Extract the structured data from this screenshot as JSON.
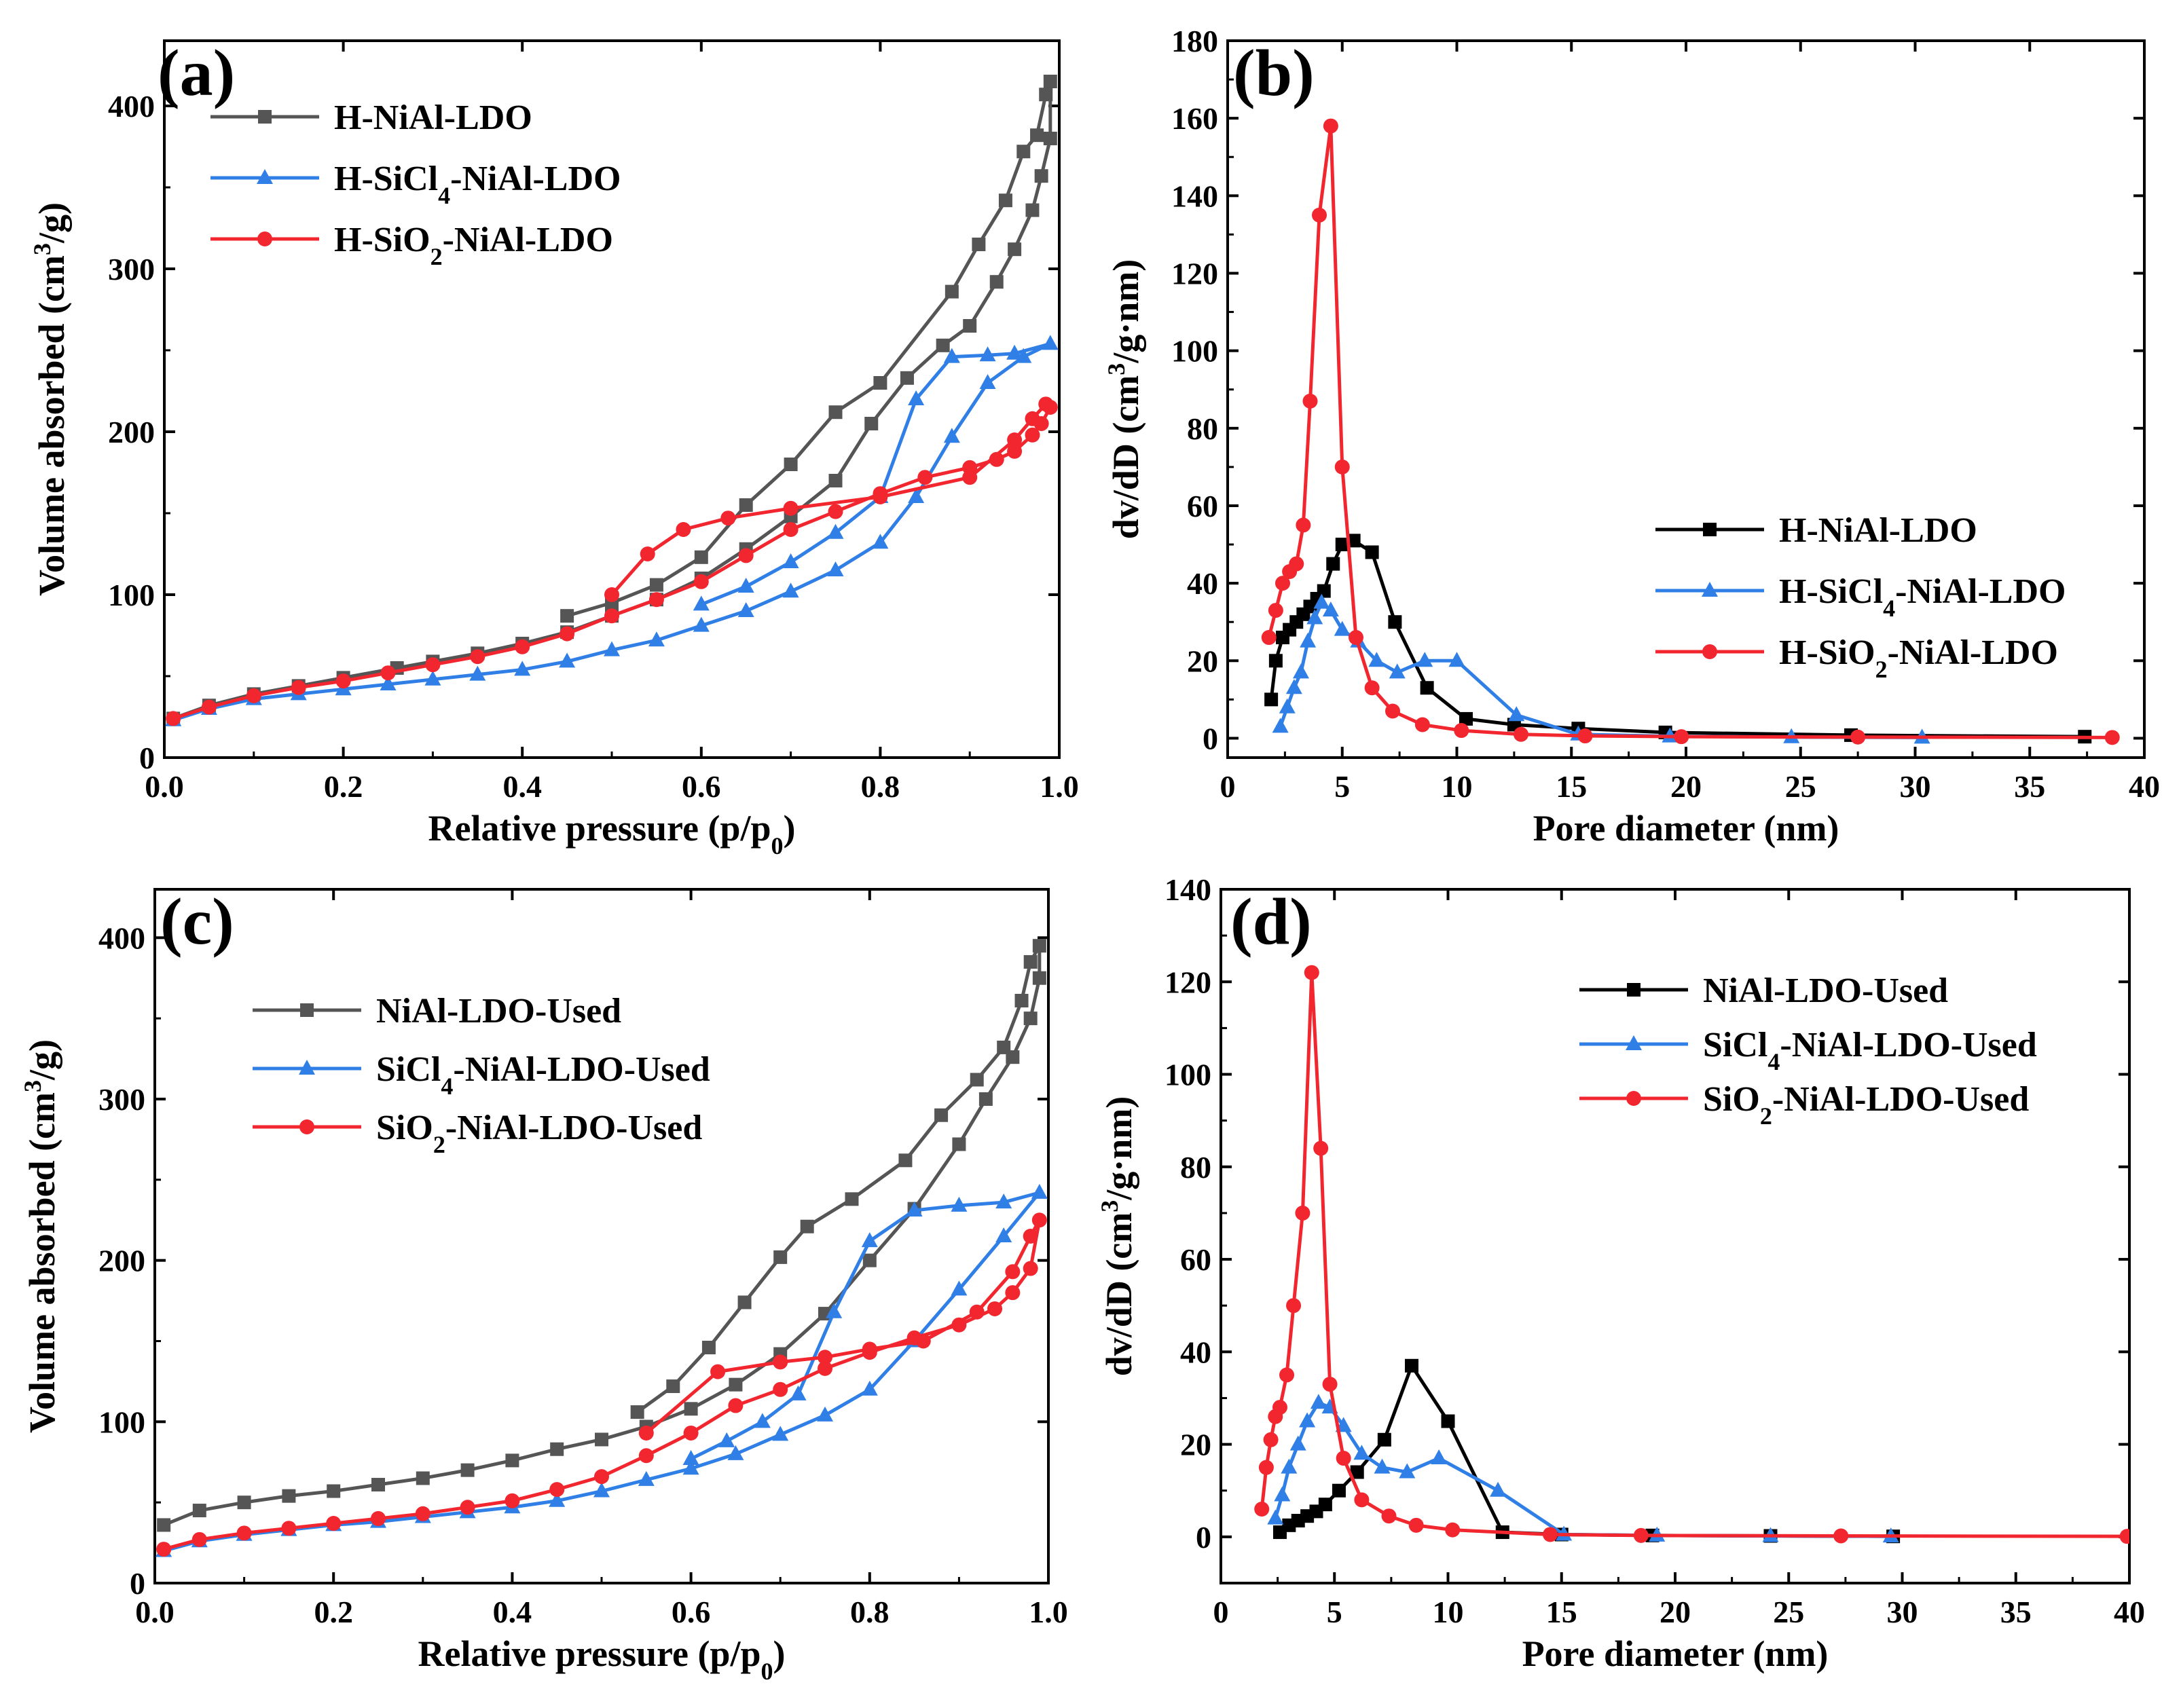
{
  "colors": {
    "black": "#000000",
    "gray": "#555555",
    "blue": "#2f7fe6",
    "red": "#f2262e"
  },
  "chart_data": [
    {
      "id": "a",
      "type": "line",
      "panel_label": "(a)",
      "xlabel": "Relative pressure (p/p0)",
      "ylabel": "Volume absorbed (cm3/g)",
      "xlim": [
        0,
        1.0
      ],
      "ylim": [
        0,
        440
      ],
      "xticks": [
        "0.0",
        "0.2",
        "0.4",
        "0.6",
        "0.8",
        "1.0"
      ],
      "yticks": [
        "0",
        "100",
        "200",
        "300",
        "400"
      ],
      "legend_position": "top-left",
      "series": [
        {
          "name": "H-NiAl-LDO",
          "color": "#555555",
          "marker": "square",
          "x": [
            0.01,
            0.05,
            0.1,
            0.15,
            0.2,
            0.26,
            0.3,
            0.35,
            0.4,
            0.45,
            0.5,
            0.55,
            0.6,
            0.65,
            0.7,
            0.75,
            0.79,
            0.83,
            0.87,
            0.9,
            0.93,
            0.95,
            0.97,
            0.98,
            0.99,
            0.99,
            0.985,
            0.975,
            0.96,
            0.94,
            0.91,
            0.88,
            0.8,
            0.75,
            0.7,
            0.65,
            0.6,
            0.55,
            0.5,
            0.45
          ],
          "y": [
            24,
            32,
            39,
            44,
            49,
            55,
            59,
            64,
            70,
            77,
            87,
            97,
            110,
            128,
            148,
            170,
            205,
            233,
            253,
            265,
            292,
            312,
            336,
            357,
            380,
            415,
            407,
            382,
            372,
            342,
            315,
            286,
            230,
            212,
            180,
            155,
            123,
            106,
            95,
            87
          ]
        },
        {
          "name": "H-SiCl4-NiAl-LDO",
          "color": "#2f7fe6",
          "marker": "triangle",
          "x": [
            0.01,
            0.05,
            0.1,
            0.15,
            0.2,
            0.25,
            0.3,
            0.35,
            0.4,
            0.45,
            0.5,
            0.55,
            0.6,
            0.65,
            0.7,
            0.75,
            0.8,
            0.84,
            0.88,
            0.92,
            0.96,
            0.99,
            0.95,
            0.92,
            0.88,
            0.84,
            0.8,
            0.75,
            0.7,
            0.65,
            0.6
          ],
          "y": [
            23,
            30,
            36,
            39,
            42,
            45,
            48,
            51,
            54,
            59,
            66,
            72,
            81,
            90,
            102,
            115,
            132,
            160,
            197,
            230,
            246,
            254,
            248,
            247,
            246,
            220,
            160,
            138,
            120,
            105,
            94
          ]
        },
        {
          "name": "H-SiO2-NiAl-LDO",
          "color": "#f2262e",
          "marker": "circle",
          "x": [
            0.01,
            0.05,
            0.1,
            0.15,
            0.2,
            0.25,
            0.3,
            0.35,
            0.4,
            0.45,
            0.5,
            0.55,
            0.6,
            0.65,
            0.7,
            0.75,
            0.8,
            0.85,
            0.9,
            0.93,
            0.95,
            0.97,
            0.98,
            0.99,
            0.985,
            0.97,
            0.95,
            0.9,
            0.8,
            0.7,
            0.63,
            0.58,
            0.54,
            0.5
          ],
          "y": [
            24,
            31,
            38,
            43,
            47,
            52,
            57,
            62,
            68,
            76,
            87,
            97,
            108,
            124,
            140,
            151,
            162,
            172,
            178,
            183,
            188,
            198,
            205,
            215,
            217,
            208,
            195,
            172,
            160,
            153,
            147,
            140,
            125,
            100
          ]
        }
      ]
    },
    {
      "id": "b",
      "type": "line",
      "panel_label": "(b)",
      "xlabel": "Pore diameter (nm)",
      "ylabel": "dv/dD (cm3/g·nm)",
      "xlim": [
        0,
        40
      ],
      "ylim": [
        -5,
        180
      ],
      "xticks": [
        "0",
        "5",
        "10",
        "15",
        "20",
        "25",
        "30",
        "35",
        "40"
      ],
      "yticks": [
        "0",
        "20",
        "40",
        "60",
        "80",
        "100",
        "120",
        "140",
        "160",
        "180"
      ],
      "legend_position": "right-middle",
      "series": [
        {
          "name": "H-NiAl-LDO",
          "color": "#000000",
          "marker": "square",
          "x": [
            1.9,
            2.1,
            2.4,
            2.7,
            3.0,
            3.3,
            3.6,
            3.9,
            4.2,
            4.6,
            5.0,
            5.5,
            6.3,
            7.3,
            8.7,
            10.4,
            12.5,
            15.3,
            19.1,
            27.2,
            37.4
          ],
          "y": [
            10,
            20,
            26,
            28,
            30,
            32,
            34,
            36,
            38,
            45,
            50,
            51,
            48,
            30,
            13,
            5,
            3.5,
            2.5,
            1.5,
            0.8,
            0.4
          ]
        },
        {
          "name": "H-SiCl4-NiAl-LDO",
          "color": "#2f7fe6",
          "marker": "triangle",
          "x": [
            2.3,
            2.6,
            2.9,
            3.2,
            3.5,
            3.8,
            4.1,
            4.5,
            5.0,
            5.7,
            6.5,
            7.4,
            8.6,
            10.0,
            12.6,
            15.3,
            19.3,
            24.6,
            30.3
          ],
          "y": [
            3,
            8,
            13,
            17,
            25,
            31,
            35,
            33,
            28,
            25,
            20,
            17,
            20,
            20,
            6,
            1,
            0.5,
            0.3,
            0.2
          ]
        },
        {
          "name": "H-SiO2-NiAl-LDO",
          "color": "#f2262e",
          "marker": "circle",
          "x": [
            1.8,
            2.1,
            2.4,
            2.7,
            3.0,
            3.3,
            3.6,
            4.0,
            4.5,
            5.0,
            5.6,
            6.3,
            7.2,
            8.5,
            10.2,
            12.8,
            15.6,
            19.8,
            27.5,
            38.6
          ],
          "y": [
            26,
            33,
            40,
            43,
            45,
            55,
            87,
            135,
            158,
            70,
            26,
            13,
            7,
            3.5,
            2,
            1,
            0.6,
            0.4,
            0.3,
            0.2
          ]
        }
      ]
    },
    {
      "id": "c",
      "type": "line",
      "panel_label": "(c)",
      "xlabel": "Relative pressure (p/p0)",
      "ylabel": "Volume absorbed (cm3/g)",
      "xlim": [
        0,
        1.0
      ],
      "ylim": [
        0,
        430
      ],
      "xticks": [
        "0.0",
        "0.2",
        "0.4",
        "0.6",
        "0.8",
        "1.0"
      ],
      "yticks": [
        "0",
        "100",
        "200",
        "300",
        "400"
      ],
      "legend_position": "top-left",
      "series": [
        {
          "name": "NiAl-LDO-Used",
          "color": "#555555",
          "marker": "square",
          "x": [
            0.01,
            0.05,
            0.1,
            0.15,
            0.2,
            0.25,
            0.3,
            0.35,
            0.4,
            0.45,
            0.5,
            0.55,
            0.6,
            0.65,
            0.7,
            0.75,
            0.8,
            0.85,
            0.9,
            0.93,
            0.96,
            0.98,
            0.99,
            0.99,
            0.98,
            0.97,
            0.95,
            0.92,
            0.88,
            0.84,
            0.78,
            0.73,
            0.7,
            0.66,
            0.62,
            0.58,
            0.54
          ],
          "y": [
            36,
            45,
            50,
            54,
            57,
            61,
            65,
            70,
            76,
            83,
            89,
            97,
            108,
            123,
            142,
            167,
            200,
            232,
            272,
            300,
            326,
            350,
            375,
            395,
            385,
            361,
            332,
            312,
            290,
            262,
            238,
            221,
            202,
            174,
            146,
            122,
            106
          ]
        },
        {
          "name": "SiCl4-NiAl-LDO-Used",
          "color": "#2f7fe6",
          "marker": "triangle",
          "x": [
            0.01,
            0.05,
            0.1,
            0.15,
            0.2,
            0.25,
            0.3,
            0.35,
            0.4,
            0.45,
            0.5,
            0.55,
            0.6,
            0.65,
            0.7,
            0.75,
            0.8,
            0.85,
            0.9,
            0.95,
            0.99,
            0.95,
            0.9,
            0.85,
            0.8,
            0.76,
            0.72,
            0.68,
            0.64,
            0.6
          ],
          "y": [
            20,
            26,
            30,
            33,
            36,
            38,
            41,
            44,
            47,
            51,
            57,
            64,
            71,
            80,
            92,
            104,
            120,
            150,
            182,
            215,
            242,
            236,
            234,
            231,
            212,
            168,
            117,
            100,
            88,
            77
          ]
        },
        {
          "name": "SiO2-NiAl-LDO-Used",
          "color": "#f2262e",
          "marker": "circle",
          "x": [
            0.01,
            0.05,
            0.1,
            0.15,
            0.2,
            0.25,
            0.3,
            0.35,
            0.4,
            0.45,
            0.5,
            0.55,
            0.6,
            0.65,
            0.7,
            0.75,
            0.8,
            0.85,
            0.9,
            0.94,
            0.96,
            0.98,
            0.99,
            0.98,
            0.96,
            0.92,
            0.86,
            0.8,
            0.75,
            0.7,
            0.63,
            0.55
          ],
          "y": [
            21,
            27,
            31,
            34,
            37,
            40,
            43,
            47,
            51,
            58,
            66,
            79,
            93,
            110,
            120,
            133,
            143,
            152,
            160,
            170,
            180,
            195,
            225,
            215,
            193,
            168,
            150,
            145,
            140,
            137,
            131,
            93
          ]
        }
      ]
    },
    {
      "id": "d",
      "type": "line",
      "panel_label": "(d)",
      "xlabel": "Pore diameter (nm)",
      "ylabel": "dv/dD (cm3/g·nm)",
      "xlim": [
        0,
        40
      ],
      "ylim": [
        -10,
        140
      ],
      "xticks": [
        "0",
        "5",
        "10",
        "15",
        "20",
        "25",
        "30",
        "35",
        "40"
      ],
      "yticks": [
        "0",
        "20",
        "40",
        "60",
        "80",
        "100",
        "120",
        "140"
      ],
      "legend_position": "top-right",
      "series": [
        {
          "name": "NiAl-LDO-Used",
          "color": "#000000",
          "marker": "square",
          "x": [
            2.6,
            3.0,
            3.4,
            3.8,
            4.2,
            4.6,
            5.2,
            6.0,
            7.2,
            8.4,
            10.0,
            12.4,
            15.0,
            19.0,
            24.2,
            29.6
          ],
          "y": [
            1,
            2.5,
            3.5,
            4.5,
            5.5,
            7,
            10,
            14,
            21,
            37,
            25,
            1,
            0.5,
            0.3,
            0.2,
            0.1
          ]
        },
        {
          "name": "SiCl4-NiAl-LDO-Used",
          "color": "#2f7fe6",
          "marker": "triangle",
          "x": [
            2.4,
            2.7,
            3.0,
            3.4,
            3.8,
            4.3,
            4.8,
            5.4,
            6.2,
            7.1,
            8.2,
            9.6,
            12.2,
            15.1,
            19.2,
            24.2,
            29.5
          ],
          "y": [
            4,
            9,
            15,
            20,
            25,
            29,
            28,
            24,
            18,
            15,
            14,
            17,
            10,
            0.5,
            0.3,
            0.2,
            0.1
          ]
        },
        {
          "name": "SiO2-NiAl-LDO-Used",
          "color": "#f2262e",
          "marker": "circle",
          "x": [
            1.8,
            2.0,
            2.2,
            2.4,
            2.6,
            2.9,
            3.2,
            3.6,
            4.0,
            4.4,
            4.8,
            5.4,
            6.2,
            7.4,
            8.6,
            10.2,
            14.5,
            18.5,
            27.3,
            39.9
          ],
          "y": [
            6,
            15,
            21,
            26,
            28,
            35,
            50,
            70,
            122,
            84,
            33,
            17,
            8,
            4.5,
            2.5,
            1.5,
            0.5,
            0.3,
            0.2,
            0.1
          ]
        }
      ]
    }
  ]
}
